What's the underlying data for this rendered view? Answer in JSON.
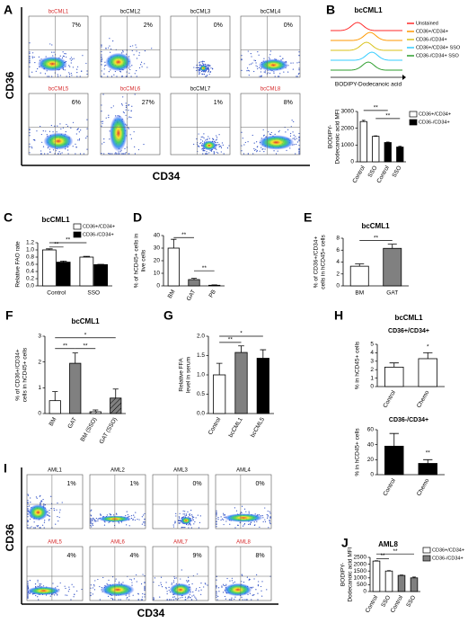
{
  "flow_panels": [
    {
      "panel": "A",
      "y_label": "CD36",
      "x_label": "CD34",
      "names": [
        "bcCML1",
        "bcCML2",
        "bcCML3",
        "bcCML4",
        "bcCML5",
        "bcCML6",
        "bcCML7",
        "bcCML8"
      ],
      "name_colors": [
        "#d62728",
        "#000000",
        "#000000",
        "#000000",
        "#d62728",
        "#d62728",
        "#000000",
        "#d62728"
      ],
      "values": [
        7,
        2,
        0,
        0,
        6,
        27,
        1,
        8
      ],
      "value_labels": [
        "7%",
        "2%",
        "0%",
        "0%",
        "6%",
        "27%",
        "1%",
        "8%"
      ]
    },
    {
      "panel": "I",
      "y_label": "CD36",
      "x_label": "CD34",
      "names": [
        "AML1",
        "AML2",
        "AML3",
        "AML4",
        "AML5",
        "AML6",
        "AML7",
        "AML8"
      ],
      "name_colors": [
        "#000000",
        "#000000",
        "#000000",
        "#000000",
        "#d62728",
        "#d62728",
        "#d62728",
        "#d62728"
      ],
      "values": [
        1,
        1,
        0,
        0,
        4,
        4,
        9,
        8
      ],
      "value_labels": [
        "1%",
        "1%",
        "0%",
        "0%",
        "4%",
        "4%",
        "9%",
        "8%"
      ]
    }
  ],
  "histogram": {
    "x_label": "BODIPY-Dodecanoic acid",
    "series": [
      {
        "name": "Unstained",
        "color": "#ff2a2a"
      },
      {
        "name": "CD36+/CD34+",
        "color": "#ff9900"
      },
      {
        "name": "CD36-/CD34+",
        "color": "#d9c21a"
      },
      {
        "name": "CD36+/CD34+ SSO",
        "color": "#33ccff"
      },
      {
        "name": "CD36-/CD34+ SSO",
        "color": "#2e9e2e"
      }
    ]
  },
  "chart_data": [
    {
      "type": "bar",
      "panel": "B",
      "title": "bcCML1",
      "ylabel": [
        "BODIPY-",
        "Dodecanoic acid MFI"
      ],
      "categories": [
        "Control",
        "SSO",
        "Control",
        "SSO"
      ],
      "series": [
        {
          "name": "CD36+/CD34+",
          "color": "#ffffff",
          "values": [
            2400,
            1520,
            null,
            null
          ],
          "errors": [
            70,
            25,
            null,
            null
          ]
        },
        {
          "name": "CD36-/CD34+",
          "color": "#000000",
          "values": [
            null,
            null,
            1150,
            880
          ],
          "errors": [
            null,
            null,
            30,
            40
          ]
        }
      ],
      "ylim": [
        0,
        3000
      ],
      "yticks": [
        0,
        1000,
        2000,
        3000
      ],
      "annotations": [
        "**",
        "**"
      ]
    },
    {
      "type": "bar",
      "panel": "C",
      "title": "bcCML1",
      "ylabel": [
        "Relative FAO rate"
      ],
      "categories": [
        "Control",
        "SSO"
      ],
      "series": [
        {
          "name": "CD36+/CD34+",
          "color": "#ffffff",
          "values": [
            1.0,
            0.8
          ],
          "errors": [
            0.03,
            0.02
          ]
        },
        {
          "name": "CD36-/CD34+",
          "color": "#000000",
          "values": [
            0.66,
            0.59
          ],
          "errors": [
            0.03,
            0.01
          ]
        }
      ],
      "ylim": [
        0,
        1.2
      ],
      "yticks": [
        {
          "value": 0,
          "label": "0.0"
        },
        0.2,
        0.4,
        0.6,
        0.8,
        {
          "value": 1,
          "label": "1.0"
        },
        1.2
      ],
      "annotations": [
        "**",
        "**"
      ]
    },
    {
      "type": "bar",
      "panel": "D",
      "ylabel": [
        "% of hCD45+ cells in",
        "live cells"
      ],
      "categories": [
        "BM",
        "GAT",
        "PB"
      ],
      "values": [
        30,
        5,
        0.5
      ],
      "errors": [
        7,
        1,
        0.3
      ],
      "colors": [
        "#ffffff",
        "#808080",
        "#ffffff"
      ],
      "ylim": [
        0,
        40
      ],
      "yticks": [
        0,
        10,
        20,
        30,
        40
      ],
      "annotations": [
        "**",
        "**"
      ]
    },
    {
      "type": "bar",
      "panel": "E",
      "title": "bcCML1",
      "ylabel": [
        "% of CD36+/CD34+",
        "cells in hCD45+ cells"
      ],
      "categories": [
        "BM",
        "GAT"
      ],
      "values": [
        3.3,
        6.3
      ],
      "errors": [
        0.4,
        0.7
      ],
      "colors": [
        "#ffffff",
        "#808080"
      ],
      "ylim": [
        0,
        8
      ],
      "yticks": [
        0,
        2,
        4,
        6,
        8
      ],
      "annotations": [
        "**"
      ]
    },
    {
      "type": "bar",
      "panel": "F",
      "title": "bcCML1",
      "ylabel": [
        "% of CD36+/CD34+",
        "cells in hCD45+ cells"
      ],
      "categories": [
        "BM",
        "GAT",
        "BM (SSO)",
        "GAT (SSO)"
      ],
      "values": [
        0.5,
        1.95,
        0.07,
        0.6
      ],
      "errors": [
        0.35,
        0.4,
        0.07,
        0.35
      ],
      "colors": [
        "#ffffff",
        "#808080",
        "#ffffff",
        "#808080"
      ],
      "hatched": [
        false,
        false,
        true,
        true
      ],
      "ylim": [
        0,
        3
      ],
      "yticks": [
        0,
        1,
        2,
        3
      ],
      "annotations": [
        "*",
        "**",
        "**"
      ]
    },
    {
      "type": "bar",
      "panel": "G",
      "ylabel": [
        "Relative FFA",
        "level in serum"
      ],
      "categories": [
        "Control",
        "bcCML1",
        "bcCML5"
      ],
      "values": [
        1.0,
        1.58,
        1.43
      ],
      "errors": [
        0.3,
        0.17,
        0.22
      ],
      "colors": [
        "#ffffff",
        "#808080",
        "#000000"
      ],
      "ylim": [
        0,
        2
      ],
      "yticks": [
        {
          "value": 0,
          "label": "0.0"
        },
        0.5,
        {
          "value": 1,
          "label": "1.0"
        },
        1.5,
        {
          "value": 2,
          "label": "2.0"
        }
      ],
      "annotations": [
        "**",
        "*"
      ]
    },
    {
      "type": "bar",
      "panel": "H",
      "title": "bcCML1",
      "subtitle": "CD36+/CD34+",
      "ylabel": [
        "% in hCD45+ cells"
      ],
      "categories": [
        "Control",
        "Chemo"
      ],
      "values": [
        2.3,
        3.3
      ],
      "errors": [
        0.5,
        0.7
      ],
      "colors": [
        "#ffffff",
        "#ffffff"
      ],
      "ylim": [
        0,
        5
      ],
      "yticks": [
        0,
        1,
        2,
        3,
        4,
        5
      ],
      "annotations": [
        "*"
      ]
    },
    {
      "type": "bar",
      "subtitle": "CD36-/CD34+",
      "ylabel": [
        "% in hCD45+ cells"
      ],
      "categories": [
        "Control",
        "Chemo"
      ],
      "values": [
        38,
        15
      ],
      "errors": [
        17,
        5
      ],
      "colors": [
        "#000000",
        "#000000"
      ],
      "ylim": [
        0,
        60
      ],
      "yticks": [
        0,
        20,
        40,
        60
      ],
      "annotations": [
        "**"
      ]
    },
    {
      "type": "bar",
      "panel": "J",
      "title": "AML8",
      "ylabel": [
        "BODIPY-",
        "Dodecanoic acid MFI"
      ],
      "categories": [
        "Control",
        "SSO",
        "Control",
        "SSO"
      ],
      "series": [
        {
          "name": "CD36+/CD34+",
          "color": "#ffffff",
          "values": [
            2230,
            1500,
            null,
            null
          ],
          "errors": [
            25,
            30,
            null,
            null
          ]
        },
        {
          "name": "CD36-/CD34+",
          "color": "#808080",
          "values": [
            null,
            null,
            1180,
            1000
          ],
          "errors": [
            null,
            null,
            25,
            60
          ]
        }
      ],
      "ylim": [
        0,
        2500
      ],
      "yticks": [
        0,
        500,
        1000,
        1500,
        2000,
        2500
      ],
      "annotations": [
        "**",
        "**"
      ]
    }
  ]
}
